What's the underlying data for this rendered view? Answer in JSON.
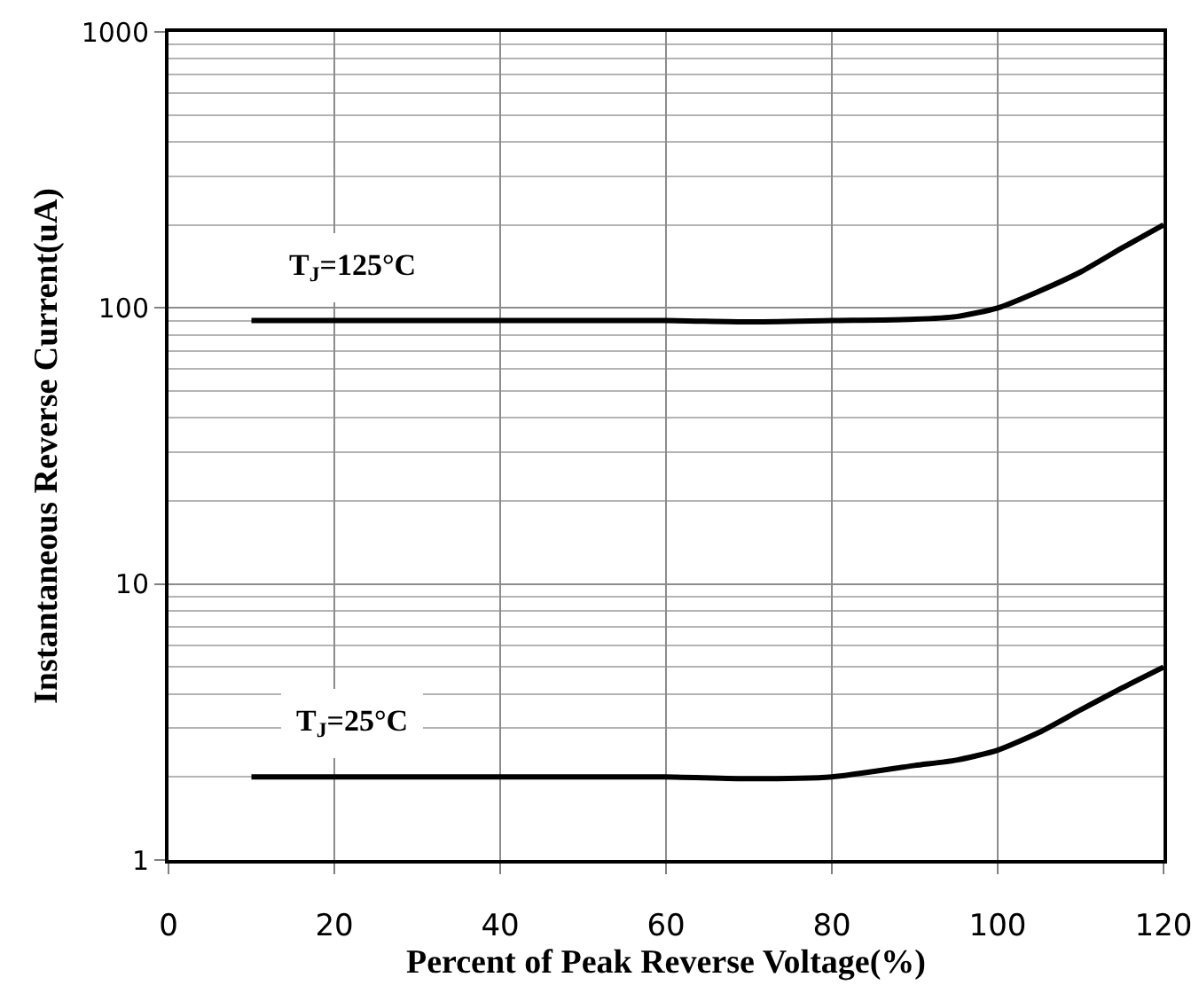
{
  "chart_data": {
    "type": "line",
    "xlabel": "Percent of Peak Reverse Voltage(%)",
    "ylabel": "Instantaneous Reverse Current(uA)",
    "xlim": [
      0,
      120
    ],
    "xticks": [
      0,
      20,
      40,
      60,
      80,
      100,
      120
    ],
    "ylim": [
      1,
      1000
    ],
    "yticks": [
      1,
      10,
      100,
      1000
    ],
    "log": "y",
    "grid": true,
    "legend": false,
    "marker": "none",
    "line_style": "solid",
    "series": [
      {
        "name": "T$_{J}$=125°C",
        "color": "#000000",
        "x": [
          10,
          20,
          40,
          60,
          70,
          80,
          90,
          95,
          100,
          105,
          110,
          115,
          120
        ],
        "values": [
          90,
          90,
          90,
          90,
          89,
          90,
          91,
          93,
          100,
          115,
          135,
          165,
          200
        ]
      },
      {
        "name": "T$_{J}$=25°C",
        "color": "#000000",
        "x": [
          10,
          20,
          40,
          60,
          70,
          80,
          90,
          95,
          100,
          105,
          110,
          115,
          120
        ],
        "values": [
          2,
          2,
          2,
          2,
          1.97,
          2,
          2.2,
          2.3,
          2.5,
          2.9,
          3.5,
          4.2,
          5
        ]
      }
    ]
  }
}
